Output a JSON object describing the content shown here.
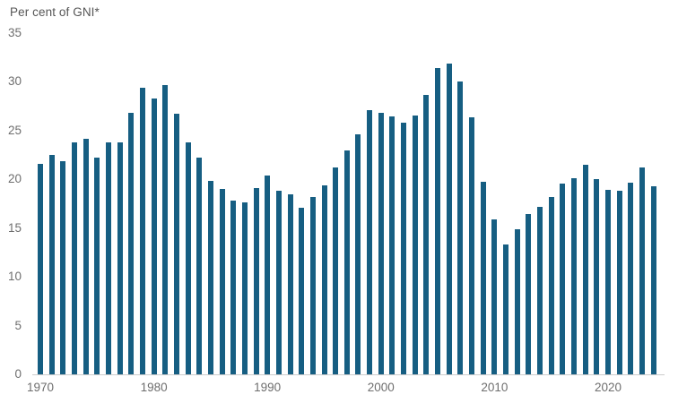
{
  "title": "Per cent of GNI*",
  "chart_data": {
    "type": "bar",
    "title": "Per cent of GNI*",
    "xlabel": "",
    "ylabel": "Per cent of GNI*",
    "ylim": [
      0,
      35
    ],
    "yticks": [
      0,
      5,
      10,
      15,
      20,
      25,
      30,
      35
    ],
    "xticks": [
      1970,
      1980,
      1990,
      2000,
      2010,
      2020
    ],
    "grid": false,
    "legend": "none",
    "bar_color": "#165e82",
    "axis_line_color": "#cccccc",
    "tick_label_color": "#6e6e6e",
    "background_color": "#ffffff",
    "x": [
      1970,
      1971,
      1972,
      1973,
      1974,
      1975,
      1976,
      1977,
      1978,
      1979,
      1980,
      1981,
      1982,
      1983,
      1984,
      1985,
      1986,
      1987,
      1988,
      1989,
      1990,
      1991,
      1992,
      1993,
      1994,
      1995,
      1996,
      1997,
      1998,
      1999,
      2000,
      2001,
      2002,
      2003,
      2004,
      2005,
      2006,
      2007,
      2008,
      2009,
      2010,
      2011,
      2012,
      2013,
      2014,
      2015,
      2016,
      2017,
      2018,
      2019,
      2020,
      2021,
      2022,
      2023,
      2024
    ],
    "values": [
      21.6,
      22.5,
      21.8,
      23.8,
      24.1,
      22.2,
      23.8,
      23.8,
      26.8,
      29.4,
      28.3,
      29.6,
      26.7,
      23.8,
      22.2,
      19.8,
      19.0,
      17.8,
      17.6,
      19.1,
      20.4,
      18.8,
      18.4,
      17.1,
      18.2,
      19.4,
      21.2,
      22.9,
      24.6,
      27.1,
      26.8,
      26.4,
      25.8,
      26.5,
      28.6,
      31.4,
      31.8,
      30.0,
      26.3,
      19.7,
      15.9,
      13.3,
      14.9,
      16.4,
      17.2,
      18.2,
      19.5,
      20.1,
      21.5,
      20.0,
      18.9,
      18.8,
      19.6,
      21.2,
      19.3
    ]
  }
}
